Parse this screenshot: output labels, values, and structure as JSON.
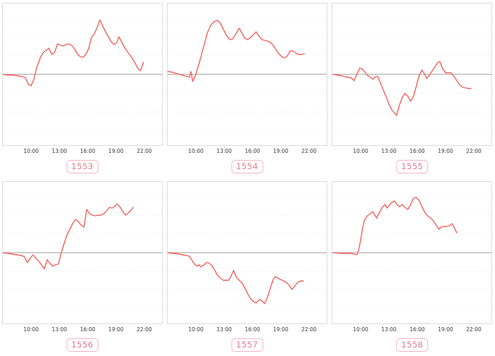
{
  "colors": {
    "line": "#f4615c",
    "zero_line": "#9b9b9b",
    "grid": "#ececec",
    "plot_border": "#dcdcdc",
    "tick_label": "#3a3a3a",
    "badge_text": "#e8798f",
    "badge_border": "#f6b4c5",
    "badge_bg": "#ffffff",
    "title_fragment": "#b8b8b8"
  },
  "axis": {
    "ticks": [
      "10:00",
      "13:00",
      "16:00",
      "19:00",
      "22:00"
    ],
    "tick_hours": [
      10,
      13,
      16,
      19,
      22
    ],
    "x_range_hours": [
      7,
      23.9
    ],
    "ylim": [
      -1,
      1
    ],
    "baseline": 0,
    "grid": "faint-dashed-horizontal"
  },
  "chart_data": [
    {
      "type": "line",
      "badge": "1553",
      "title_fragment": "",
      "x_tick_labels": [
        "10:00",
        "13:00",
        "16:00",
        "19:00",
        "22:00"
      ],
      "ylim": [
        -1,
        1
      ],
      "baseline": 0,
      "points": [
        [
          7,
          0
        ],
        [
          7.5,
          -0.01
        ],
        [
          8,
          -0.01
        ],
        [
          8.5,
          -0.02
        ],
        [
          9,
          -0.03
        ],
        [
          9.4,
          -0.05
        ],
        [
          9.7,
          -0.14
        ],
        [
          10,
          -0.16
        ],
        [
          10.3,
          -0.07
        ],
        [
          10.6,
          0.1
        ],
        [
          11,
          0.24
        ],
        [
          11.3,
          0.31
        ],
        [
          11.6,
          0.34
        ],
        [
          11.9,
          0.37
        ],
        [
          12.2,
          0.28
        ],
        [
          12.5,
          0.31
        ],
        [
          12.8,
          0.43
        ],
        [
          13.1,
          0.41
        ],
        [
          13.4,
          0.4
        ],
        [
          13.7,
          0.42
        ],
        [
          14,
          0.43
        ],
        [
          14.3,
          0.41
        ],
        [
          14.6,
          0.36
        ],
        [
          14.9,
          0.29
        ],
        [
          15.2,
          0.25
        ],
        [
          15.5,
          0.24
        ],
        [
          15.8,
          0.28
        ],
        [
          16.1,
          0.36
        ],
        [
          16.4,
          0.52
        ],
        [
          16.7,
          0.57
        ],
        [
          17,
          0.66
        ],
        [
          17.3,
          0.77
        ],
        [
          17.6,
          0.68
        ],
        [
          17.9,
          0.6
        ],
        [
          18.2,
          0.53
        ],
        [
          18.5,
          0.46
        ],
        [
          18.8,
          0.42
        ],
        [
          19.1,
          0.45
        ],
        [
          19.3,
          0.53
        ],
        [
          19.6,
          0.46
        ],
        [
          19.9,
          0.38
        ],
        [
          20.2,
          0.32
        ],
        [
          20.5,
          0.27
        ],
        [
          20.8,
          0.21
        ],
        [
          21.1,
          0.14
        ],
        [
          21.4,
          0.07
        ],
        [
          21.6,
          0.05
        ],
        [
          21.9,
          0.17
        ]
      ]
    },
    {
      "type": "line",
      "badge": "1554",
      "title_fragment": "·· ··· ···· ··· ··",
      "x_tick_labels": [
        "10:00",
        "13:00",
        "16:00",
        "19:00",
        "22:00"
      ],
      "ylim": [
        -1,
        1
      ],
      "baseline": 0,
      "points": [
        [
          7,
          0.04
        ],
        [
          7.5,
          0.03
        ],
        [
          8,
          0.01
        ],
        [
          8.5,
          -0.01
        ],
        [
          9,
          -0.03
        ],
        [
          9.3,
          -0.04
        ],
        [
          9.5,
          0.04
        ],
        [
          9.65,
          -0.1
        ],
        [
          9.85,
          -0.05
        ],
        [
          10,
          0
        ],
        [
          10.4,
          0.18
        ],
        [
          10.8,
          0.38
        ],
        [
          11.2,
          0.58
        ],
        [
          11.6,
          0.7
        ],
        [
          12,
          0.75
        ],
        [
          12.3,
          0.76
        ],
        [
          12.6,
          0.72
        ],
        [
          12.9,
          0.64
        ],
        [
          13.2,
          0.56
        ],
        [
          13.5,
          0.5
        ],
        [
          13.8,
          0.49
        ],
        [
          14.1,
          0.54
        ],
        [
          14.4,
          0.61
        ],
        [
          14.6,
          0.65
        ],
        [
          14.9,
          0.58
        ],
        [
          15.2,
          0.51
        ],
        [
          15.5,
          0.49
        ],
        [
          15.8,
          0.52
        ],
        [
          16.1,
          0.56
        ],
        [
          16.4,
          0.6
        ],
        [
          16.7,
          0.54
        ],
        [
          17,
          0.49
        ],
        [
          17.3,
          0.48
        ],
        [
          17.6,
          0.47
        ],
        [
          17.9,
          0.45
        ],
        [
          18.2,
          0.41
        ],
        [
          18.5,
          0.35
        ],
        [
          18.8,
          0.29
        ],
        [
          19.1,
          0.25
        ],
        [
          19.4,
          0.23
        ],
        [
          19.7,
          0.26
        ],
        [
          20,
          0.33
        ],
        [
          20.3,
          0.33
        ],
        [
          20.6,
          0.3
        ],
        [
          20.9,
          0.28
        ],
        [
          21.2,
          0.28
        ],
        [
          21.5,
          0.29
        ]
      ]
    },
    {
      "type": "line",
      "badge": "1555",
      "title_fragment": "· ·",
      "x_tick_labels": [
        "10:00",
        "13:00",
        "16:00",
        "19:00",
        "22:00"
      ],
      "ylim": [
        -1,
        1
      ],
      "baseline": 0,
      "points": [
        [
          7,
          0
        ],
        [
          7.5,
          -0.01
        ],
        [
          8,
          -0.02
        ],
        [
          8.5,
          -0.04
        ],
        [
          9,
          -0.05
        ],
        [
          9.3,
          -0.09
        ],
        [
          9.6,
          0
        ],
        [
          9.9,
          0.09
        ],
        [
          10.1,
          0.08
        ],
        [
          10.4,
          0.04
        ],
        [
          10.7,
          -0.01
        ],
        [
          11,
          -0.04
        ],
        [
          11.3,
          -0.07
        ],
        [
          11.5,
          -0.04
        ],
        [
          11.8,
          -0.03
        ],
        [
          12.1,
          -0.12
        ],
        [
          12.4,
          -0.22
        ],
        [
          12.7,
          -0.32
        ],
        [
          13,
          -0.42
        ],
        [
          13.3,
          -0.5
        ],
        [
          13.6,
          -0.55
        ],
        [
          13.8,
          -0.58
        ],
        [
          14.1,
          -0.44
        ],
        [
          14.4,
          -0.33
        ],
        [
          14.7,
          -0.27
        ],
        [
          15,
          -0.31
        ],
        [
          15.3,
          -0.38
        ],
        [
          15.6,
          -0.31
        ],
        [
          15.9,
          -0.17
        ],
        [
          16.2,
          -0.02
        ],
        [
          16.5,
          0.06
        ],
        [
          16.8,
          0
        ],
        [
          17,
          -0.06
        ],
        [
          17.3,
          -0.01
        ],
        [
          17.6,
          0.05
        ],
        [
          17.9,
          0.11
        ],
        [
          18.2,
          0.17
        ],
        [
          18.4,
          0.18
        ],
        [
          18.7,
          0.08
        ],
        [
          19,
          0.02
        ],
        [
          19.3,
          0.02
        ],
        [
          19.6,
          0.02
        ],
        [
          19.9,
          -0.03
        ],
        [
          20.2,
          -0.09
        ],
        [
          20.5,
          -0.15
        ],
        [
          20.8,
          -0.18
        ],
        [
          21.1,
          -0.19
        ],
        [
          21.4,
          -0.2
        ],
        [
          21.7,
          -0.2
        ]
      ]
    },
    {
      "type": "line",
      "badge": "1556",
      "title_fragment": "· ·",
      "x_tick_labels": [
        "10:00",
        "13:00",
        "16:00",
        "19:00",
        "22:00"
      ],
      "ylim": [
        -1,
        1
      ],
      "baseline": 0,
      "points": [
        [
          7,
          0
        ],
        [
          7.5,
          -0.01
        ],
        [
          8,
          -0.02
        ],
        [
          8.5,
          -0.03
        ],
        [
          9,
          -0.04
        ],
        [
          9.3,
          -0.06
        ],
        [
          9.6,
          -0.14
        ],
        [
          9.9,
          -0.08
        ],
        [
          10.2,
          -0.03
        ],
        [
          10.5,
          -0.08
        ],
        [
          10.8,
          -0.12
        ],
        [
          11.1,
          -0.17
        ],
        [
          11.4,
          -0.23
        ],
        [
          11.7,
          -0.1
        ],
        [
          12,
          -0.15
        ],
        [
          12.3,
          -0.19
        ],
        [
          12.6,
          -0.17
        ],
        [
          12.9,
          -0.16
        ],
        [
          13.2,
          0
        ],
        [
          13.5,
          0.13
        ],
        [
          13.8,
          0.25
        ],
        [
          14.1,
          0.33
        ],
        [
          14.4,
          0.41
        ],
        [
          14.7,
          0.47
        ],
        [
          15,
          0.44
        ],
        [
          15.3,
          0.39
        ],
        [
          15.6,
          0.36
        ],
        [
          15.9,
          0.61
        ],
        [
          16.2,
          0.55
        ],
        [
          16.5,
          0.53
        ],
        [
          16.8,
          0.52
        ],
        [
          17.1,
          0.53
        ],
        [
          17.4,
          0.53
        ],
        [
          17.7,
          0.55
        ],
        [
          18,
          0.59
        ],
        [
          18.3,
          0.64
        ],
        [
          18.6,
          0.63
        ],
        [
          18.9,
          0.66
        ],
        [
          19.1,
          0.69
        ],
        [
          19.4,
          0.65
        ],
        [
          19.7,
          0.59
        ],
        [
          20,
          0.53
        ],
        [
          20.3,
          0.56
        ],
        [
          20.6,
          0.6
        ],
        [
          20.8,
          0.64
        ]
      ]
    },
    {
      "type": "line",
      "badge": "1557",
      "title_fragment": "· ·",
      "x_tick_labels": [
        "10:00",
        "13:00",
        "16:00",
        "19:00",
        "22:00"
      ],
      "ylim": [
        -1,
        1
      ],
      "baseline": 0,
      "points": [
        [
          7,
          0
        ],
        [
          7.4,
          -0.01
        ],
        [
          7.8,
          -0.01
        ],
        [
          8.2,
          -0.02
        ],
        [
          8.6,
          -0.03
        ],
        [
          9,
          -0.04
        ],
        [
          9.3,
          -0.05
        ],
        [
          9.6,
          -0.11
        ],
        [
          9.9,
          -0.17
        ],
        [
          10.1,
          -0.19
        ],
        [
          10.3,
          -0.17
        ],
        [
          10.5,
          -0.2
        ],
        [
          10.8,
          -0.18
        ],
        [
          11.1,
          -0.14
        ],
        [
          11.4,
          -0.15
        ],
        [
          11.7,
          -0.18
        ],
        [
          12,
          -0.25
        ],
        [
          12.3,
          -0.32
        ],
        [
          12.6,
          -0.36
        ],
        [
          12.9,
          -0.39
        ],
        [
          13.2,
          -0.39
        ],
        [
          13.5,
          -0.39
        ],
        [
          13.8,
          -0.31
        ],
        [
          14,
          -0.25
        ],
        [
          14.3,
          -0.35
        ],
        [
          14.6,
          -0.39
        ],
        [
          14.9,
          -0.43
        ],
        [
          15.2,
          -0.5
        ],
        [
          15.5,
          -0.58
        ],
        [
          15.8,
          -0.65
        ],
        [
          16.1,
          -0.69
        ],
        [
          16.4,
          -0.71
        ],
        [
          16.6,
          -0.68
        ],
        [
          16.8,
          -0.66
        ],
        [
          17,
          -0.68
        ],
        [
          17.3,
          -0.72
        ],
        [
          17.6,
          -0.63
        ],
        [
          17.9,
          -0.5
        ],
        [
          18.2,
          -0.38
        ],
        [
          18.4,
          -0.34
        ],
        [
          18.7,
          -0.36
        ],
        [
          19,
          -0.38
        ],
        [
          19.3,
          -0.4
        ],
        [
          19.6,
          -0.42
        ],
        [
          19.9,
          -0.46
        ],
        [
          20.2,
          -0.52
        ],
        [
          20.5,
          -0.47
        ],
        [
          20.8,
          -0.42
        ],
        [
          21.1,
          -0.4
        ],
        [
          21.4,
          -0.4
        ]
      ]
    },
    {
      "type": "line",
      "badge": "1558",
      "title_fragment": "· ·",
      "x_tick_labels": [
        "10:00",
        "13:00",
        "16:00",
        "19:00",
        "22:00"
      ],
      "ylim": [
        -1,
        1
      ],
      "baseline": 0,
      "points": [
        [
          7,
          0
        ],
        [
          7.4,
          0
        ],
        [
          7.8,
          -0.01
        ],
        [
          8.2,
          -0.01
        ],
        [
          8.6,
          -0.01
        ],
        [
          9,
          -0.01
        ],
        [
          9.3,
          -0.02
        ],
        [
          9.6,
          -0.03
        ],
        [
          9.8,
          0.04
        ],
        [
          10,
          0.18
        ],
        [
          10.2,
          0.34
        ],
        [
          10.4,
          0.46
        ],
        [
          10.7,
          0.52
        ],
        [
          11,
          0.55
        ],
        [
          11.3,
          0.58
        ],
        [
          11.5,
          0.53
        ],
        [
          11.7,
          0.49
        ],
        [
          12,
          0.57
        ],
        [
          12.3,
          0.64
        ],
        [
          12.6,
          0.68
        ],
        [
          12.8,
          0.63
        ],
        [
          13.1,
          0.68
        ],
        [
          13.4,
          0.72
        ],
        [
          13.6,
          0.73
        ],
        [
          13.9,
          0.67
        ],
        [
          14.1,
          0.65
        ],
        [
          14.4,
          0.68
        ],
        [
          14.7,
          0.64
        ],
        [
          15,
          0.61
        ],
        [
          15.3,
          0.68
        ],
        [
          15.6,
          0.77
        ],
        [
          15.9,
          0.78
        ],
        [
          16.2,
          0.74
        ],
        [
          16.5,
          0.65
        ],
        [
          16.8,
          0.57
        ],
        [
          17.1,
          0.52
        ],
        [
          17.4,
          0.49
        ],
        [
          17.7,
          0.45
        ],
        [
          18,
          0.39
        ],
        [
          18.3,
          0.33
        ],
        [
          18.5,
          0.36
        ],
        [
          18.8,
          0.37
        ],
        [
          19.1,
          0.37
        ],
        [
          19.4,
          0.38
        ],
        [
          19.7,
          0.41
        ],
        [
          19.9,
          0.36
        ],
        [
          20.2,
          0.28
        ]
      ]
    }
  ]
}
